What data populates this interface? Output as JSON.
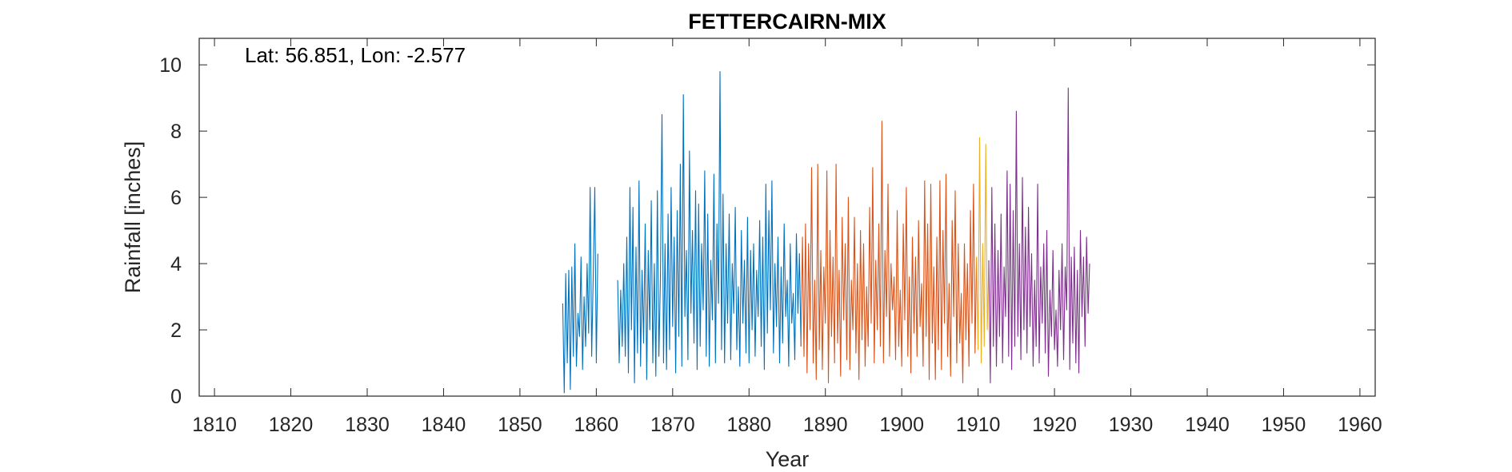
{
  "chart_data": {
    "type": "line",
    "title": "FETTERCAIRN-MIX",
    "xlabel": "Year",
    "ylabel": "Rainfall [inches]",
    "annotation": "Lat: 56.851, Lon: -2.577",
    "xlim": [
      1808,
      1962
    ],
    "ylim": [
      0,
      10.8
    ],
    "xticks": [
      1810,
      1820,
      1830,
      1840,
      1850,
      1860,
      1870,
      1880,
      1890,
      1900,
      1910,
      1920,
      1930,
      1940,
      1950,
      1960
    ],
    "yticks": [
      0,
      2,
      4,
      6,
      8,
      10
    ],
    "grid": false,
    "box": true,
    "resolution": "monthly",
    "series": [
      {
        "color": "#0072BD",
        "segments": [
          {
            "x": [
              1855.6,
              1855.8,
              1856.0,
              1856.2,
              1856.4,
              1856.6,
              1856.8,
              1857.0,
              1857.2,
              1857.4,
              1857.6,
              1857.8,
              1858.0,
              1858.2,
              1858.4,
              1858.6,
              1858.8,
              1859.0,
              1859.2,
              1859.4,
              1859.6,
              1859.8,
              1860.0,
              1860.2
            ],
            "y": [
              2.8,
              0.1,
              3.7,
              1.0,
              3.8,
              0.2,
              3.9,
              1.2,
              4.6,
              0.9,
              2.5,
              1.8,
              4.2,
              0.8,
              3.0,
              1.5,
              4.0,
              1.9,
              6.3,
              1.2,
              3.6,
              6.3,
              1.0,
              4.3
            ]
          },
          {
            "x": [
              1862.8,
              1863.0,
              1863.2,
              1863.4,
              1863.6,
              1863.8,
              1864.0,
              1864.2,
              1864.4,
              1864.6,
              1864.8,
              1865.0,
              1865.2,
              1865.4,
              1865.6,
              1865.8,
              1866.0,
              1866.2,
              1866.4,
              1866.6,
              1866.8,
              1867.0,
              1867.2,
              1867.4,
              1867.6,
              1867.8,
              1868.0,
              1868.2,
              1868.4,
              1868.6,
              1868.8,
              1869.0,
              1869.2,
              1869.4,
              1869.6,
              1869.8,
              1870.0,
              1870.2,
              1870.4,
              1870.6,
              1870.8,
              1871.0,
              1871.2,
              1871.4,
              1871.6,
              1871.8,
              1872.0,
              1872.2,
              1872.4,
              1872.6,
              1872.8,
              1873.0,
              1873.2,
              1873.4,
              1873.6,
              1873.8,
              1874.0,
              1874.2,
              1874.4,
              1874.6,
              1874.8,
              1875.0,
              1875.2,
              1875.4,
              1875.6,
              1875.8,
              1876.0,
              1876.2,
              1876.4,
              1876.6,
              1876.8,
              1877.0,
              1877.2,
              1877.4,
              1877.6,
              1877.8,
              1878.0,
              1878.2,
              1878.4,
              1878.6,
              1878.8,
              1879.0,
              1879.2,
              1879.4,
              1879.6,
              1879.8,
              1880.0,
              1880.2,
              1880.4,
              1880.6,
              1880.8,
              1881.0,
              1881.2,
              1881.4,
              1881.6,
              1881.8,
              1882.0,
              1882.2,
              1882.4,
              1882.6,
              1882.8,
              1883.0,
              1883.2,
              1883.4,
              1883.6,
              1883.8,
              1884.0,
              1884.2,
              1884.4,
              1884.6,
              1884.8,
              1885.0,
              1885.2,
              1885.4,
              1885.6,
              1885.8,
              1886.0,
              1886.2,
              1886.4,
              1886.6,
              1886.8
            ],
            "y": [
              3.5,
              1.0,
              3.2,
              1.5,
              4.0,
              1.2,
              4.8,
              0.7,
              6.3,
              2.0,
              5.7,
              0.4,
              4.5,
              1.3,
              6.5,
              0.9,
              3.8,
              1.6,
              5.2,
              0.5,
              4.4,
              2.0,
              5.9,
              1.0,
              4.0,
              0.6,
              6.2,
              1.2,
              3.5,
              8.5,
              1.0,
              4.6,
              0.8,
              5.5,
              1.4,
              6.3,
              2.1,
              4.8,
              0.7,
              5.6,
              1.8,
              7.0,
              0.9,
              9.1,
              2.4,
              4.4,
              1.1,
              7.4,
              2.5,
              5.0,
              1.6,
              6.2,
              0.8,
              5.8,
              1.5,
              4.6,
              2.6,
              6.8,
              1.2,
              5.5,
              0.9,
              4.1,
              2.3,
              6.7,
              1.0,
              5.2,
              2.8,
              9.8,
              1.4,
              6.1,
              1.0,
              4.6,
              2.2,
              5.5,
              1.1,
              4.0,
              2.5,
              5.7,
              1.4,
              3.3,
              0.9,
              5.0,
              2.2,
              4.1,
              1.3,
              5.4,
              1.0,
              4.4,
              2.0,
              4.6,
              1.2,
              3.8,
              2.4,
              5.3,
              1.5,
              4.8,
              0.8,
              6.4,
              1.9,
              5.6,
              2.6,
              6.5,
              1.3,
              4.0,
              2.1,
              4.8,
              1.0,
              3.9,
              1.6,
              5.2,
              2.4,
              3.5,
              0.9,
              4.6,
              2.2,
              3.1,
              1.1,
              4.9,
              2.5,
              4.3,
              1.5
            ]
          }
        ]
      },
      {
        "color": "#D95319",
        "segments": [
          {
            "x": [
              1886.8,
              1887.0,
              1887.2,
              1887.4,
              1887.6,
              1887.8,
              1888.0,
              1888.2,
              1888.4,
              1888.6,
              1888.8,
              1889.0,
              1889.2,
              1889.4,
              1889.6,
              1889.8,
              1890.0,
              1890.2,
              1890.4,
              1890.6,
              1890.8,
              1891.0,
              1891.2,
              1891.4,
              1891.6,
              1891.8,
              1892.0,
              1892.2,
              1892.4,
              1892.6,
              1892.8,
              1893.0,
              1893.2,
              1893.4,
              1893.6,
              1893.8,
              1894.0,
              1894.2,
              1894.4,
              1894.6,
              1894.8,
              1895.0,
              1895.2,
              1895.4,
              1895.6,
              1895.8,
              1896.0,
              1896.2,
              1896.4,
              1896.6,
              1896.8,
              1897.0,
              1897.2,
              1897.4,
              1897.6,
              1897.8,
              1898.0,
              1898.2,
              1898.4,
              1898.6,
              1898.8,
              1899.0,
              1899.2,
              1899.4,
              1899.6,
              1899.8,
              1900.0,
              1900.2,
              1900.4,
              1900.6,
              1900.8,
              1901.0,
              1901.2,
              1901.4,
              1901.6,
              1901.8,
              1902.0,
              1902.2,
              1902.4,
              1902.6,
              1902.8,
              1903.0,
              1903.2,
              1903.4,
              1903.6,
              1903.8,
              1904.0,
              1904.2,
              1904.4,
              1904.6,
              1904.8,
              1905.0,
              1905.2,
              1905.4,
              1905.6,
              1905.8,
              1906.0,
              1906.2,
              1906.4,
              1906.6,
              1906.8,
              1907.0,
              1907.2,
              1907.4,
              1907.6,
              1907.8,
              1908.0,
              1908.2,
              1908.4,
              1908.6,
              1908.8,
              1909.0,
              1909.2,
              1909.4,
              1909.6,
              1909.8
            ],
            "y": [
              1.5,
              4.8,
              1.2,
              5.2,
              0.7,
              4.6,
              2.0,
              6.9,
              1.0,
              3.5,
              0.5,
              7.0,
              1.4,
              4.4,
              0.8,
              3.9,
              2.2,
              6.8,
              0.4,
              5.0,
              1.8,
              4.2,
              1.0,
              7.0,
              1.6,
              3.8,
              0.6,
              5.4,
              2.3,
              4.6,
              1.1,
              6.0,
              0.8,
              3.5,
              2.0,
              5.4,
              1.3,
              4.0,
              0.5,
              5.0,
              1.7,
              4.6,
              0.9,
              3.3,
              1.5,
              5.7,
              2.2,
              6.9,
              1.0,
              4.1,
              2.0,
              5.2,
              1.5,
              8.3,
              1.0,
              4.4,
              2.4,
              6.4,
              1.2,
              4.0,
              2.6,
              3.6,
              1.1,
              5.6,
              1.5,
              3.2,
              0.9,
              5.2,
              2.3,
              6.3,
              1.2,
              3.6,
              0.7,
              4.8,
              1.9,
              4.2,
              1.2,
              5.3,
              2.1,
              3.4,
              0.9,
              6.5,
              1.8,
              5.2,
              0.5,
              6.4,
              1.6,
              3.9,
              0.5,
              4.8,
              1.4,
              6.5,
              0.8,
              5.0,
              2.2,
              6.7,
              1.2,
              3.4,
              0.6,
              5.3,
              2.4,
              6.2,
              1.0,
              4.6,
              1.6,
              3.1,
              0.4,
              4.6,
              1.7,
              4.0,
              0.9,
              5.6,
              2.2,
              6.4,
              1.3,
              4.2
            ]
          }
        ]
      },
      {
        "color": "#EDB120",
        "segments": [
          {
            "x": [
              1909.8,
              1910.0,
              1910.2,
              1910.4,
              1910.6,
              1910.8,
              1911.0,
              1911.2,
              1911.4
            ],
            "y": [
              4.2,
              1.4,
              7.8,
              1.0,
              4.6,
              1.5,
              7.6,
              2.0,
              4.1
            ]
          }
        ]
      },
      {
        "color": "#7E2F8E",
        "segments": [
          {
            "x": [
              1911.4,
              1911.6,
              1911.8,
              1912.0,
              1912.2,
              1912.4,
              1912.6,
              1912.8,
              1913.0,
              1913.2,
              1913.4,
              1913.6,
              1913.8,
              1914.0,
              1914.2,
              1914.4,
              1914.6,
              1914.8,
              1915.0,
              1915.2,
              1915.4,
              1915.6,
              1915.8,
              1916.0,
              1916.2,
              1916.4,
              1916.6,
              1916.8,
              1917.0,
              1917.2,
              1917.4,
              1917.6,
              1917.8,
              1918.0,
              1918.2,
              1918.4,
              1918.6,
              1918.8,
              1919.0,
              1919.2,
              1919.4,
              1919.6,
              1919.8,
              1920.0,
              1920.2,
              1920.4,
              1920.6,
              1920.8,
              1921.0,
              1921.2,
              1921.4,
              1921.6,
              1921.8,
              1922.0,
              1922.2,
              1922.4,
              1922.6,
              1922.8,
              1923.0,
              1923.2,
              1923.4,
              1923.6,
              1923.8,
              1924.0,
              1924.2,
              1924.4,
              1924.6
            ],
            "y": [
              4.1,
              0.4,
              6.3,
              1.5,
              5.2,
              0.9,
              4.4,
              1.8,
              5.5,
              1.0,
              3.9,
              2.4,
              6.8,
              1.2,
              6.4,
              0.8,
              5.6,
              1.5,
              8.6,
              1.8,
              4.6,
              1.1,
              6.6,
              2.0,
              5.1,
              1.3,
              5.7,
              2.1,
              4.3,
              0.9,
              3.5,
              1.5,
              6.4,
              1.0,
              3.9,
              2.2,
              4.6,
              1.3,
              5.0,
              0.6,
              3.2,
              1.8,
              4.4,
              1.4,
              2.6,
              0.9,
              3.8,
              2.0,
              4.6,
              1.1,
              3.9,
              2.6,
              9.3,
              0.8,
              4.2,
              1.6,
              4.5,
              1.0,
              3.8,
              0.7,
              5.0,
              2.4,
              4.2,
              1.5,
              4.8,
              2.5,
              4.0
            ]
          }
        ]
      }
    ]
  }
}
